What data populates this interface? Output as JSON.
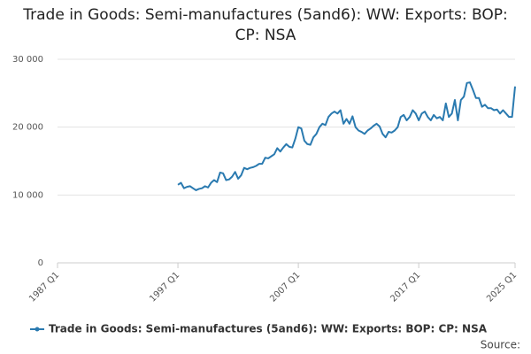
{
  "chart_data": {
    "type": "line",
    "title": "Trade in Goods: Semi-manufactures (5and6): WW: Exports: BOP: CP: NSA",
    "source": "Source:",
    "categories": [
      "1987 Q1",
      null,
      null,
      null,
      null,
      null,
      null,
      null,
      null,
      null,
      null,
      null,
      null,
      null,
      null,
      null,
      null,
      null,
      null,
      null,
      null,
      null,
      null,
      null,
      null,
      null,
      null,
      null,
      null,
      null,
      null,
      null,
      null,
      null,
      null,
      null,
      null,
      null,
      null,
      null,
      "1997 Q1",
      null,
      null,
      null,
      null,
      null,
      null,
      null,
      null,
      null,
      null,
      null,
      null,
      null,
      null,
      null,
      null,
      null,
      null,
      null,
      null,
      null,
      null,
      null,
      null,
      null,
      null,
      null,
      null,
      null,
      null,
      null,
      null,
      null,
      null,
      null,
      null,
      null,
      null,
      null,
      "2007 Q1",
      null,
      null,
      null,
      null,
      null,
      null,
      null,
      null,
      null,
      null,
      null,
      null,
      null,
      null,
      null,
      null,
      null,
      null,
      null,
      null,
      null,
      null,
      null,
      null,
      null,
      null,
      null,
      null,
      null,
      null,
      null,
      null,
      null,
      null,
      null,
      null,
      null,
      null,
      null,
      "2017 Q1",
      null,
      null,
      null,
      null,
      null,
      null,
      null,
      null,
      null,
      null,
      null,
      null,
      null,
      null,
      null,
      null,
      null,
      null,
      null,
      null,
      null,
      null,
      null,
      null,
      null,
      null,
      null,
      null,
      null,
      null,
      null,
      "2025 Q1"
    ],
    "series": [
      {
        "name": "Trade in Goods: Semi-manufactures (5and6): WW: Exports: BOP: CP: NSA",
        "color": "#2a7ab0",
        "values": [
          null,
          null,
          null,
          null,
          null,
          null,
          null,
          null,
          null,
          null,
          null,
          null,
          null,
          null,
          null,
          null,
          null,
          null,
          null,
          null,
          null,
          null,
          null,
          null,
          null,
          null,
          null,
          null,
          null,
          null,
          null,
          null,
          null,
          null,
          null,
          null,
          null,
          null,
          null,
          null,
          11500,
          11800,
          11000,
          11200,
          11300,
          11000,
          10700,
          10900,
          11000,
          11300,
          11100,
          11800,
          12200,
          11900,
          13300,
          13200,
          12200,
          12300,
          12700,
          13400,
          12400,
          12900,
          14000,
          13800,
          14000,
          14100,
          14300,
          14600,
          14600,
          15500,
          15400,
          15700,
          16000,
          16900,
          16400,
          17000,
          17500,
          17100,
          17000,
          18300,
          20000,
          19800,
          18000,
          17500,
          17400,
          18500,
          19000,
          20000,
          20500,
          20300,
          21500,
          22000,
          22300,
          22000,
          22500,
          20500,
          21200,
          20500,
          21600,
          20000,
          19500,
          19300,
          19000,
          19500,
          19800,
          20200,
          20500,
          20100,
          19000,
          18500,
          19300,
          19200,
          19500,
          20000,
          21500,
          21800,
          21000,
          21500,
          22500,
          22000,
          21000,
          22000,
          22300,
          21500,
          21000,
          21800,
          21300,
          21500,
          21000,
          23500,
          21500,
          22000,
          24000,
          21000,
          24000,
          24500,
          26500,
          26600,
          25500,
          24300,
          24300,
          23000,
          23300,
          22800,
          22800,
          22500,
          22600,
          22000,
          22500,
          22000,
          21500,
          21500,
          26000
        ]
      }
    ],
    "ylim": [
      0,
      30000
    ],
    "yticks": [
      0,
      {
        "value": 10000,
        "label": "10 000"
      },
      {
        "value": 20000,
        "label": "20 000"
      },
      {
        "value": 30000,
        "label": "30 000"
      }
    ],
    "grid": true
  }
}
